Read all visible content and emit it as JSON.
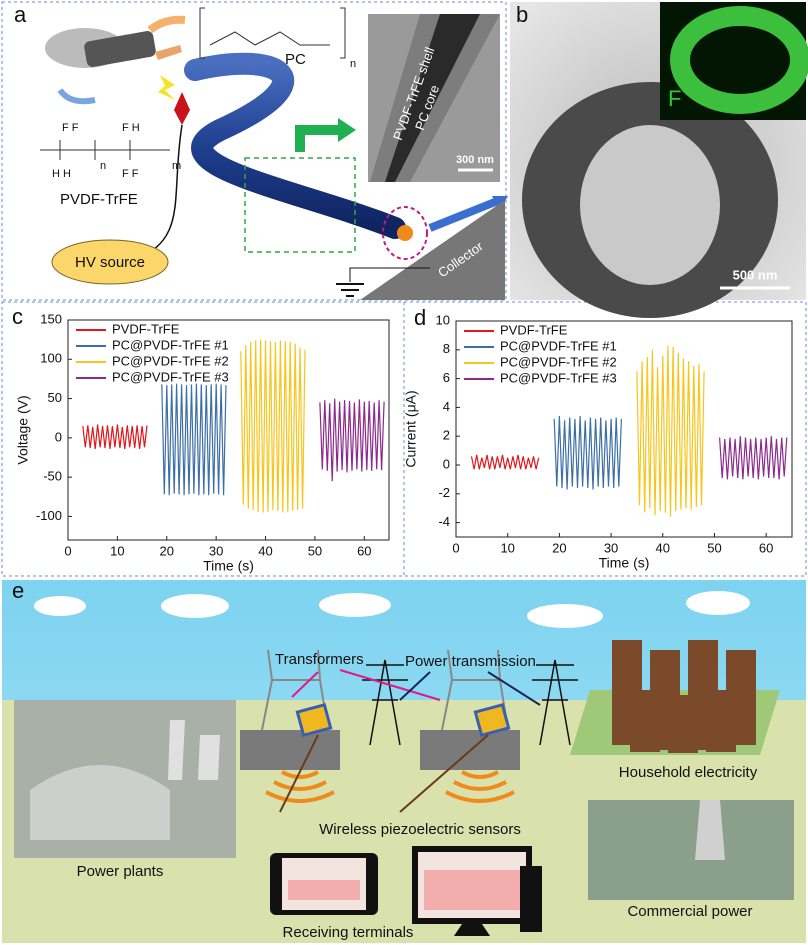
{
  "figure": {
    "a": {
      "panel": "a",
      "polymer_pc": "PC",
      "pc_n": "n",
      "polymer_pvdf": "PVDF-TrFE",
      "chem_top1": "F F",
      "chem_top2": "F H",
      "chem_bottom1": "H H",
      "chem_bottom2": "F F",
      "chem_n": "n",
      "chem_m": "m",
      "hv": "HV source",
      "shell": "PVDF-TrFE shell",
      "core": "PC core",
      "scale": "300 nm",
      "collector": "Collector"
    },
    "b": {
      "panel": "b",
      "element": "F",
      "scale": "500 nm"
    },
    "e": {
      "panel": "e",
      "transformers": "Transformers",
      "transmission": "Power transmission",
      "household": "Household electricity",
      "plants": "Power plants",
      "sensors": "Wireless piezoelectric sensors",
      "terminals": "Receiving terminals",
      "commercial": "Commercial power"
    }
  },
  "chart_data": [
    {
      "type": "line",
      "panel": "c",
      "x_label": "Time (s)",
      "y_label": "Voltage (V)",
      "xlim": [
        0,
        65
      ],
      "ylim": [
        -130,
        150
      ],
      "xticks": [
        0,
        10,
        20,
        30,
        40,
        50,
        60
      ],
      "yticks": [
        -100,
        -50,
        0,
        50,
        100,
        150
      ],
      "legend": "top-left",
      "series": [
        {
          "name": "PVDF-TrFE",
          "color": "#e3161b",
          "x": [
            3,
            3.5,
            4,
            4.5,
            5,
            5.5,
            6,
            6.5,
            7,
            7.5,
            8,
            8.5,
            9,
            9.5,
            10,
            10.5,
            11,
            11.5,
            12,
            12.5,
            13,
            13.5,
            14,
            14.5,
            15,
            15.5,
            16
          ],
          "values": [
            15,
            -12,
            16,
            -13,
            14,
            -14,
            17,
            -12,
            15,
            -13,
            16,
            -14,
            15,
            -12,
            17,
            -13,
            14,
            -14,
            16,
            -12,
            15,
            -13,
            16,
            -14,
            15,
            -12,
            16
          ]
        },
        {
          "name": "PC@PVDF-TrFE #1",
          "color": "#3d6ea8",
          "x": [
            19,
            19.5,
            20,
            20.5,
            21,
            21.5,
            22,
            22.5,
            23,
            23.5,
            24,
            24.5,
            25,
            25.5,
            26,
            26.5,
            27,
            27.5,
            28,
            28.5,
            29,
            29.5,
            30,
            30.5,
            31,
            31.5,
            32
          ],
          "values": [
            68,
            -72,
            67,
            -73,
            68,
            -71,
            69,
            -72,
            68,
            -73,
            67,
            -72,
            68,
            -71,
            69,
            -73,
            68,
            -72,
            67,
            -73,
            68,
            -71,
            69,
            -72,
            68,
            -73,
            67
          ]
        },
        {
          "name": "PC@PVDF-TrFE #2",
          "color": "#f7c51e",
          "x": [
            35,
            35.5,
            36,
            36.5,
            37,
            37.5,
            38,
            38.5,
            39,
            39.5,
            40,
            40.5,
            41,
            41.5,
            42,
            42.5,
            43,
            43.5,
            44,
            44.5,
            45,
            45.5,
            46,
            46.5,
            47,
            47.5,
            48
          ],
          "values": [
            110,
            -85,
            118,
            -90,
            122,
            -92,
            124,
            -94,
            125,
            -95,
            124,
            -94,
            123,
            -92,
            122,
            -93,
            124,
            -95,
            123,
            -94,
            122,
            -93,
            120,
            -92,
            115,
            -90,
            112
          ]
        },
        {
          "name": "PC@PVDF-TrFE #3",
          "color": "#8b2a8e",
          "x": [
            51,
            51.5,
            52,
            52.5,
            53,
            53.5,
            54,
            54.5,
            55,
            55.5,
            56,
            56.5,
            57,
            57.5,
            58,
            58.5,
            59,
            59.5,
            60,
            60.5,
            61,
            61.5,
            62,
            62.5,
            63,
            63.5,
            64
          ],
          "values": [
            45,
            -40,
            48,
            -42,
            44,
            -55,
            50,
            -43,
            46,
            -41,
            48,
            -44,
            47,
            -42,
            45,
            -40,
            49,
            -43,
            46,
            -41,
            47,
            -42,
            45,
            -40,
            48,
            -41,
            46
          ]
        }
      ]
    },
    {
      "type": "line",
      "panel": "d",
      "x_label": "Time (s)",
      "y_label": "Current (μA)",
      "xlim": [
        0,
        65
      ],
      "ylim": [
        -5,
        10
      ],
      "xticks": [
        0,
        10,
        20,
        30,
        40,
        50,
        60
      ],
      "yticks": [
        -4,
        -2,
        0,
        2,
        4,
        6,
        8,
        10
      ],
      "legend": "top-left",
      "series": [
        {
          "name": "PVDF-TrFE",
          "color": "#e3161b",
          "x": [
            3,
            3.5,
            4,
            4.5,
            5,
            5.5,
            6,
            6.5,
            7,
            7.5,
            8,
            8.5,
            9,
            9.5,
            10,
            10.5,
            11,
            11.5,
            12,
            12.5,
            13,
            13.5,
            14,
            14.5,
            15,
            15.5,
            16
          ],
          "values": [
            0.6,
            -0.3,
            0.7,
            -0.3,
            0.5,
            -0.2,
            0.7,
            -0.3,
            0.6,
            -0.3,
            0.6,
            -0.2,
            0.7,
            -0.3,
            0.5,
            -0.3,
            0.6,
            -0.2,
            0.7,
            -0.3,
            0.6,
            -0.3,
            0.5,
            -0.2,
            0.6,
            -0.3,
            0.5
          ]
        },
        {
          "name": "PC@PVDF-TrFE #1",
          "color": "#3d6ea8",
          "x": [
            19,
            19.5,
            20,
            20.5,
            21,
            21.5,
            22,
            22.5,
            23,
            23.5,
            24,
            24.5,
            25,
            25.5,
            26,
            26.5,
            27,
            27.5,
            28,
            28.5,
            29,
            29.5,
            30,
            30.5,
            31,
            31.5,
            32
          ],
          "values": [
            3.2,
            -1.5,
            3.4,
            -1.6,
            3.1,
            -1.7,
            3.3,
            -1.5,
            3.2,
            -1.6,
            3.4,
            -1.5,
            3.1,
            -1.6,
            3.3,
            -1.7,
            3.2,
            -1.5,
            3.3,
            -1.6,
            3.1,
            -1.5,
            3.2,
            -1.6,
            3.3,
            -1.5,
            3.2
          ]
        },
        {
          "name": "PC@PVDF-TrFE #2",
          "color": "#f7c51e",
          "x": [
            35,
            35.5,
            36,
            36.5,
            37,
            37.5,
            38,
            38.5,
            39,
            39.5,
            40,
            40.5,
            41,
            41.5,
            42,
            42.5,
            43,
            43.5,
            44,
            44.5,
            45,
            45.5,
            46,
            46.5,
            47,
            47.5,
            48
          ],
          "values": [
            6.5,
            -2.8,
            7.2,
            -3.3,
            7.5,
            -3.0,
            8.0,
            -3.5,
            6.8,
            -3.2,
            7.6,
            -3.3,
            8.3,
            -3.6,
            8.2,
            -3.2,
            7.8,
            -3.1,
            7.4,
            -3.0,
            7.2,
            -3.1,
            6.9,
            -2.9,
            7.0,
            -2.8,
            6.5
          ]
        },
        {
          "name": "PC@PVDF-TrFE #3",
          "color": "#8b2a8e",
          "x": [
            51,
            51.5,
            52,
            52.5,
            53,
            53.5,
            54,
            54.5,
            55,
            55.5,
            56,
            56.5,
            57,
            57.5,
            58,
            58.5,
            59,
            59.5,
            60,
            60.5,
            61,
            61.5,
            62,
            62.5,
            63,
            63.5,
            64
          ],
          "values": [
            1.9,
            -0.9,
            1.8,
            -1.0,
            1.9,
            -0.8,
            1.8,
            -0.9,
            2.0,
            -1.0,
            1.9,
            -0.8,
            1.8,
            -0.9,
            1.9,
            -1.0,
            1.8,
            -0.8,
            1.9,
            -0.9,
            2.0,
            -0.9,
            1.8,
            -1.0,
            1.9,
            -0.8,
            1.9
          ]
        }
      ]
    }
  ]
}
